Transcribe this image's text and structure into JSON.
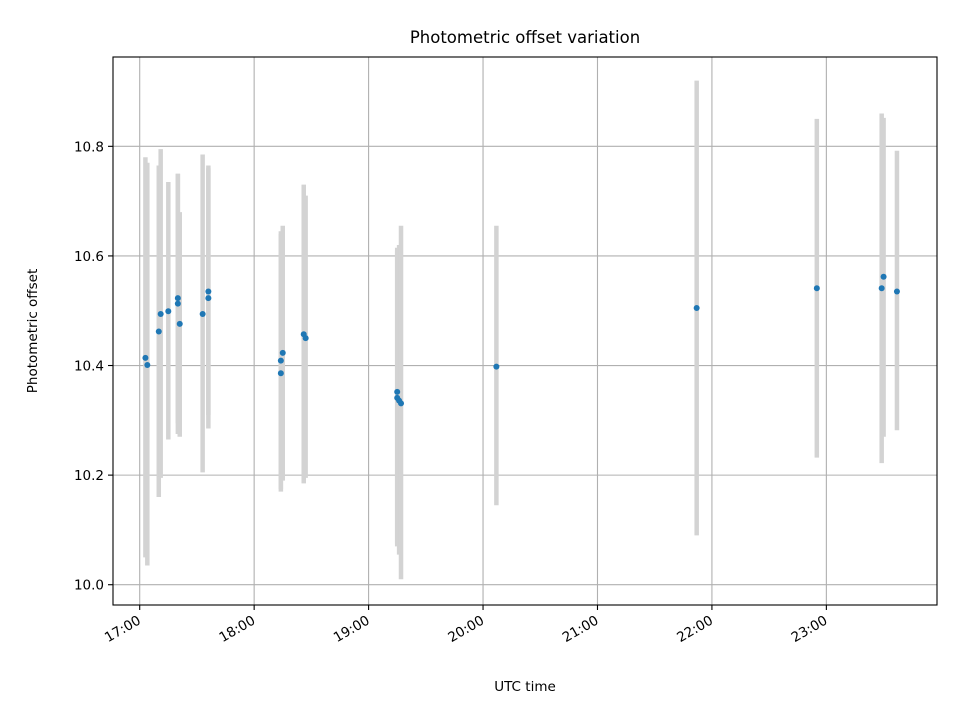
{
  "chart_data": {
    "type": "scatter",
    "title": "Photometric offset variation",
    "xlabel": "UTC time",
    "ylabel": "Photometric offset",
    "xlim": [
      "16:46",
      "23:58"
    ],
    "ylim": [
      9.963,
      10.963
    ],
    "x_ticks": [
      "17:00",
      "18:00",
      "19:00",
      "20:00",
      "21:00",
      "22:00",
      "23:00"
    ],
    "y_ticks": [
      "10.0",
      "10.2",
      "10.4",
      "10.6",
      "10.8"
    ],
    "grid": true,
    "colors": {
      "points": "#1f77b4",
      "error_bars": "#d3d3d3",
      "grid": "#b0b0b0"
    },
    "series": [
      {
        "points": [
          {
            "x": "17:03",
            "y": 10.414,
            "ylo": 10.05,
            "yhi": 10.78
          },
          {
            "x": "17:04",
            "y": 10.401,
            "ylo": 10.035,
            "yhi": 10.77
          },
          {
            "x": "17:10",
            "y": 10.462,
            "ylo": 10.16,
            "yhi": 10.765
          },
          {
            "x": "17:11",
            "y": 10.494,
            "ylo": 10.195,
            "yhi": 10.795
          },
          {
            "x": "17:15",
            "y": 10.499,
            "ylo": 10.265,
            "yhi": 10.735
          },
          {
            "x": "17:20",
            "y": 10.523,
            "ylo": 10.295,
            "yhi": 10.75
          },
          {
            "x": "17:20",
            "y": 10.513,
            "ylo": 10.275,
            "yhi": 10.75
          },
          {
            "x": "17:21",
            "y": 10.476,
            "ylo": 10.27,
            "yhi": 10.68
          },
          {
            "x": "17:33",
            "y": 10.494,
            "ylo": 10.205,
            "yhi": 10.785
          },
          {
            "x": "17:36",
            "y": 10.535,
            "ylo": 10.31,
            "yhi": 10.76
          },
          {
            "x": "17:36",
            "y": 10.523,
            "ylo": 10.285,
            "yhi": 10.765
          },
          {
            "x": "18:14",
            "y": 10.386,
            "ylo": 10.17,
            "yhi": 10.64
          },
          {
            "x": "18:14",
            "y": 10.409,
            "ylo": 10.175,
            "yhi": 10.645
          },
          {
            "x": "18:15",
            "y": 10.423,
            "ylo": 10.19,
            "yhi": 10.655
          },
          {
            "x": "18:26",
            "y": 10.457,
            "ylo": 10.185,
            "yhi": 10.73
          },
          {
            "x": "18:27",
            "y": 10.45,
            "ylo": 10.195,
            "yhi": 10.71
          },
          {
            "x": "19:15",
            "y": 10.352,
            "ylo": 10.07,
            "yhi": 10.615
          },
          {
            "x": "19:15",
            "y": 10.341,
            "ylo": 10.075,
            "yhi": 10.61
          },
          {
            "x": "19:16",
            "y": 10.336,
            "ylo": 10.055,
            "yhi": 10.62
          },
          {
            "x": "19:17",
            "y": 10.331,
            "ylo": 10.01,
            "yhi": 10.655
          },
          {
            "x": "20:07",
            "y": 10.398,
            "ylo": 10.145,
            "yhi": 10.655
          },
          {
            "x": "21:52",
            "y": 10.505,
            "ylo": 10.09,
            "yhi": 10.92
          },
          {
            "x": "22:55",
            "y": 10.541,
            "ylo": 10.232,
            "yhi": 10.85
          },
          {
            "x": "23:29",
            "y": 10.541,
            "ylo": 10.222,
            "yhi": 10.86
          },
          {
            "x": "23:30",
            "y": 10.562,
            "ylo": 10.27,
            "yhi": 10.852
          },
          {
            "x": "23:37",
            "y": 10.535,
            "ylo": 10.282,
            "yhi": 10.792
          }
        ]
      }
    ]
  }
}
